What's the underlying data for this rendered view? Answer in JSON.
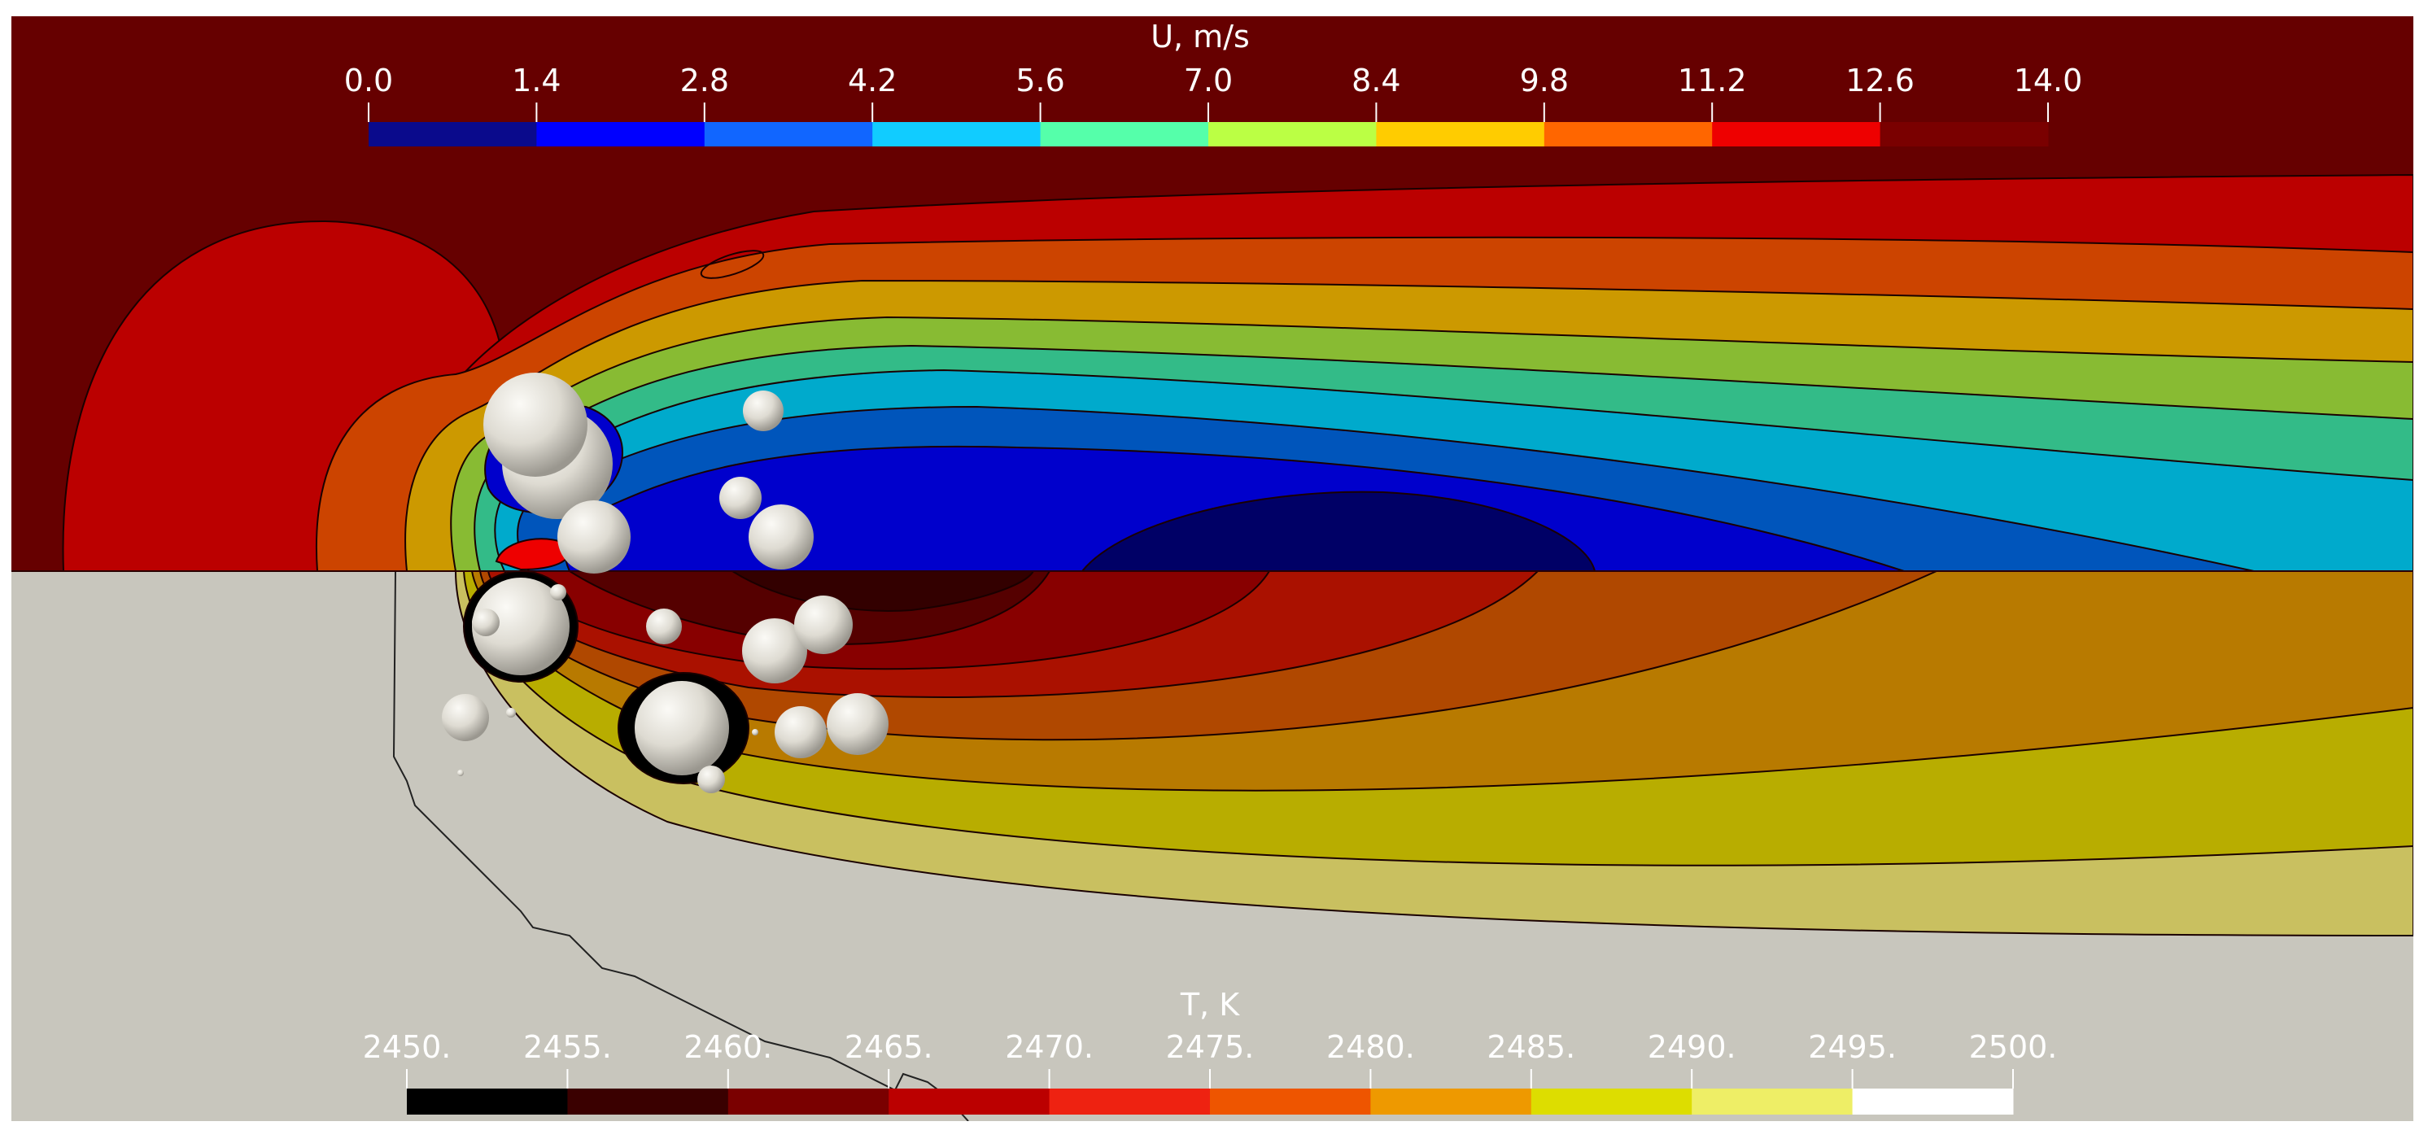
{
  "velocity_colorbar": {
    "title": "U, m/s",
    "ticks": [
      "0.0",
      "1.4",
      "2.8",
      "4.2",
      "5.6",
      "7.0",
      "8.4",
      "9.8",
      "11.2",
      "12.6",
      "14.0"
    ],
    "colors": [
      "#0a0a8c",
      "#0000ff",
      "#1166ff",
      "#11ccff",
      "#55ffaa",
      "#bbff44",
      "#ffcc00",
      "#ff6600",
      "#ee0000",
      "#7a0000"
    ]
  },
  "temperature_colorbar": {
    "title": "T, K",
    "ticks": [
      "2450.",
      "2455.",
      "2460.",
      "2465.",
      "2470.",
      "2475.",
      "2480.",
      "2485.",
      "2490.",
      "2495.",
      "2500."
    ],
    "colors": [
      "#000000",
      "#3a0000",
      "#7a0000",
      "#bb0000",
      "#ee2211",
      "#ee5500",
      "#ee9900",
      "#dddd00",
      "#eeee66",
      "#ffffff"
    ]
  },
  "field_colors": {
    "velocity_background": "#660000",
    "temperature_background": "#c8c6bd",
    "particles": "#e0ddd5"
  }
}
